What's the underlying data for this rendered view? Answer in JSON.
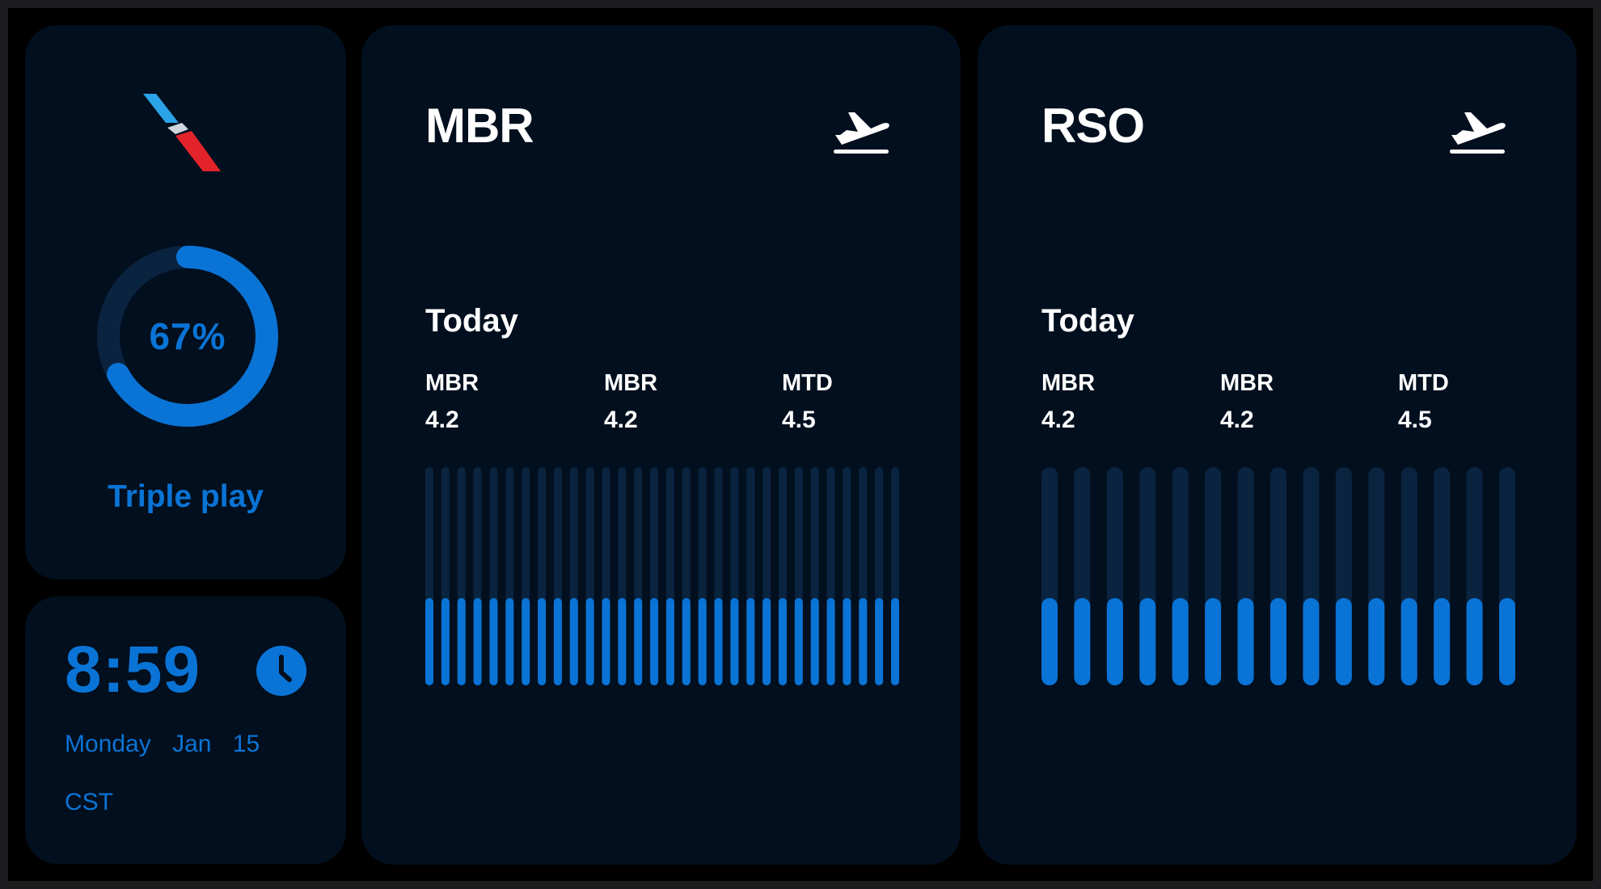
{
  "colors": {
    "accent": "#0a74d6",
    "track": "#0a2440",
    "card": "#020f1e",
    "text": "#ffffff"
  },
  "goal": {
    "percent_label": "67%",
    "percent": 0.67,
    "label": "Triple play",
    "logo_icon": "airline-logo-icon"
  },
  "clock": {
    "time": "8:59",
    "weekday": "Monday",
    "month": "Jan",
    "day": "15",
    "timezone": "CST",
    "icon": "clock-icon"
  },
  "panels": [
    {
      "title": "MBR",
      "icon": "plane-departure-icon",
      "section": "Today",
      "stats": [
        {
          "label": "MBR",
          "value": "4.2"
        },
        {
          "label": "MBR",
          "value": "4.2"
        },
        {
          "label": "MTD",
          "value": "4.5"
        }
      ],
      "bar_count": 30,
      "bar_level": 0.4
    },
    {
      "title": "RSO",
      "icon": "plane-departure-icon",
      "section": "Today",
      "stats": [
        {
          "label": "MBR",
          "value": "4.2"
        },
        {
          "label": "MBR",
          "value": "4.2"
        },
        {
          "label": "MTD",
          "value": "4.5"
        }
      ],
      "bar_count": 15,
      "bar_level": 0.4
    }
  ]
}
